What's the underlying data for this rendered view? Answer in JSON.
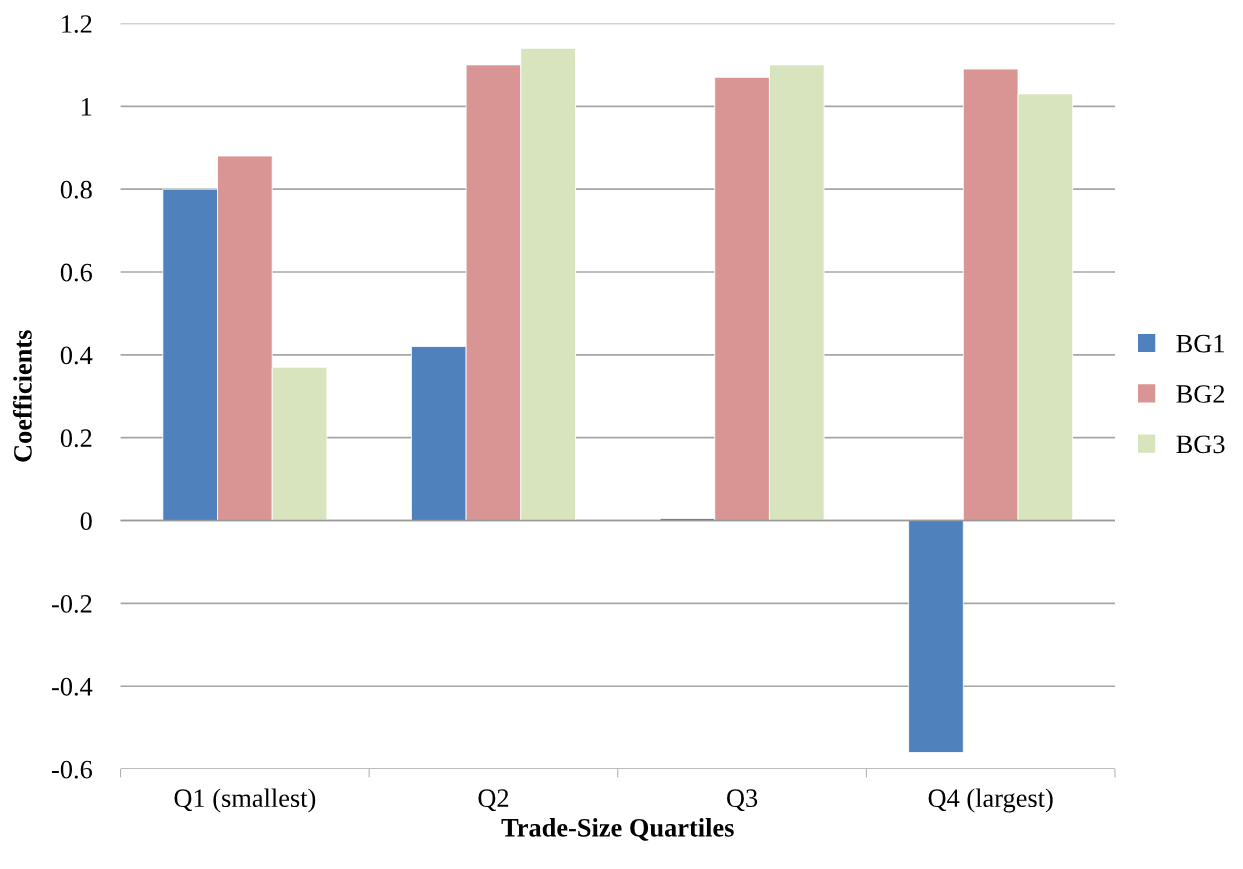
{
  "chart_data": {
    "type": "bar",
    "xlabel": "Trade-Size Quartiles",
    "ylabel": "Coefficients",
    "categories": [
      "Q1 (smallest)",
      "Q2",
      "Q3",
      "Q4 (largest)"
    ],
    "series": [
      {
        "name": "BG1",
        "color": "#4f81bd",
        "values": [
          0.8,
          0.42,
          0.005,
          -0.56
        ]
      },
      {
        "name": "BG2",
        "color": "#d99594",
        "values": [
          0.88,
          1.1,
          1.07,
          1.09
        ]
      },
      {
        "name": "BG3",
        "color": "#d7e4bd",
        "values": [
          0.37,
          1.14,
          1.1,
          1.03
        ]
      }
    ],
    "ylim": [
      -0.6,
      1.2
    ],
    "yticks": [
      {
        "value": -0.6,
        "label": "-0.6"
      },
      {
        "value": -0.4,
        "label": "-0.4"
      },
      {
        "value": -0.2,
        "label": "-0.2"
      },
      0,
      0.2,
      0.4,
      0.6,
      0.8,
      1,
      1.2
    ],
    "grid": "y",
    "legend": "right"
  }
}
